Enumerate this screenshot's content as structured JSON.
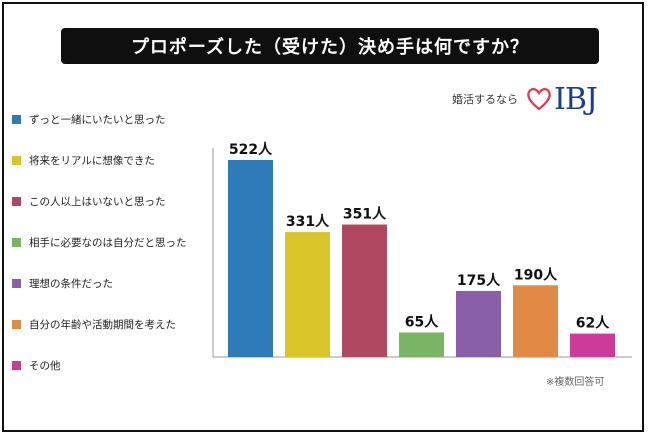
{
  "title": "プロポーズした（受けた）決め手は何ですか？",
  "brand": {
    "tagline": "婚活するなら",
    "logo": "IBJ",
    "heart_color": "#e03a4c",
    "logo_color": "#1c3d8f"
  },
  "note": "※複数回答可",
  "chart_data": {
    "type": "bar",
    "categories": [
      "ずっと一緒にいたいと思った",
      "将来をリアルに想像できた",
      "この人以上はいないと思った",
      "相手に必要なのは自分だと思った",
      "理想の条件だった",
      "自分の年齢や活動期間を考えた",
      "その他"
    ],
    "values": [
      522,
      331,
      351,
      65,
      175,
      190,
      62
    ],
    "value_labels": [
      "522人",
      "331人",
      "351人",
      "65人",
      "175人",
      "190人",
      "62人"
    ],
    "colors": [
      "#2f7ab9",
      "#d9c52a",
      "#b0495f",
      "#7ab563",
      "#8a5faa",
      "#e08a46",
      "#cc3a9a"
    ],
    "ylim": [
      0,
      522
    ],
    "grid": false,
    "legend_position": "left"
  }
}
